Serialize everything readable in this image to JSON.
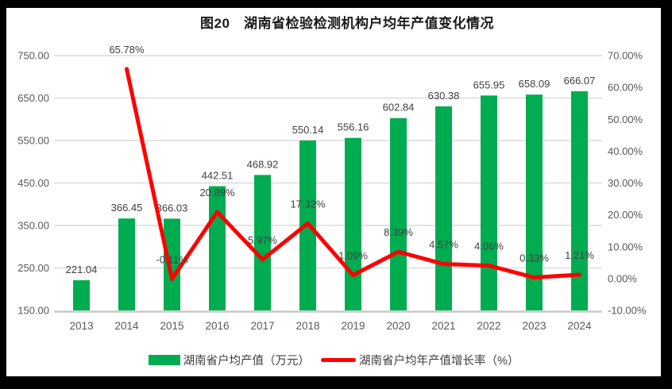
{
  "title": "图20　湖南省检验检测机构户均年产值变化情况",
  "colors": {
    "frame": "#000000",
    "panel": "#ffffff",
    "bar": "#00AC50",
    "line": "#FE0000",
    "grid": "#DCDCDC",
    "axis_line": "#C9C9C9",
    "tick_text": "#595959",
    "label_text": "#404040",
    "title_text": "#1a1a1a"
  },
  "legend": [
    {
      "type": "bar",
      "label": "湖南省户均产值（万元）"
    },
    {
      "type": "line",
      "label": "湖南省户均年产值增长率（%）"
    }
  ],
  "chart_data": {
    "type": "bar+line combo",
    "title": "图20　湖南省检验检测机构户均年产值变化情况",
    "categories": [
      "2013",
      "2014",
      "2015",
      "2016",
      "2017",
      "2018",
      "2019",
      "2020",
      "2021",
      "2022",
      "2023",
      "2024"
    ],
    "series": [
      {
        "name": "湖南省户均产值（万元）",
        "type": "bar",
        "axis": "left",
        "values": [
          221.04,
          366.45,
          366.03,
          442.51,
          468.92,
          550.14,
          556.16,
          602.84,
          630.38,
          655.95,
          658.09,
          666.07
        ],
        "labels": [
          "221.04",
          "366.45",
          "366.03",
          "442.51",
          "468.92",
          "550.14",
          "556.16",
          "602.84",
          "630.38",
          "655.95",
          "658.09",
          "666.07"
        ]
      },
      {
        "name": "湖南省户均年产值增长率（%）",
        "type": "line",
        "axis": "right",
        "values": [
          null,
          65.78,
          -0.11,
          20.89,
          5.97,
          17.32,
          1.09,
          8.39,
          4.57,
          4.06,
          0.33,
          1.21
        ],
        "labels": [
          null,
          "65.78%",
          "-0.11%",
          "20.89%",
          "5.97%",
          "17.32%",
          "1.09%",
          "8.39%",
          "4.57%",
          "4.06%",
          "0.33%",
          "1.21%"
        ]
      }
    ],
    "left_axis": {
      "min": 150,
      "max": 750,
      "step": 100,
      "ticks": [
        "750.00",
        "650.00",
        "550.00",
        "450.00",
        "350.00",
        "250.00",
        "150.00"
      ]
    },
    "right_axis": {
      "min": -10,
      "max": 70,
      "step": 10,
      "ticks": [
        "70.00%",
        "60.00%",
        "50.00%",
        "40.00%",
        "30.00%",
        "20.00%",
        "10.00%",
        "0.00%",
        "-10.00%"
      ]
    },
    "grid": true,
    "legend_position": "bottom"
  }
}
